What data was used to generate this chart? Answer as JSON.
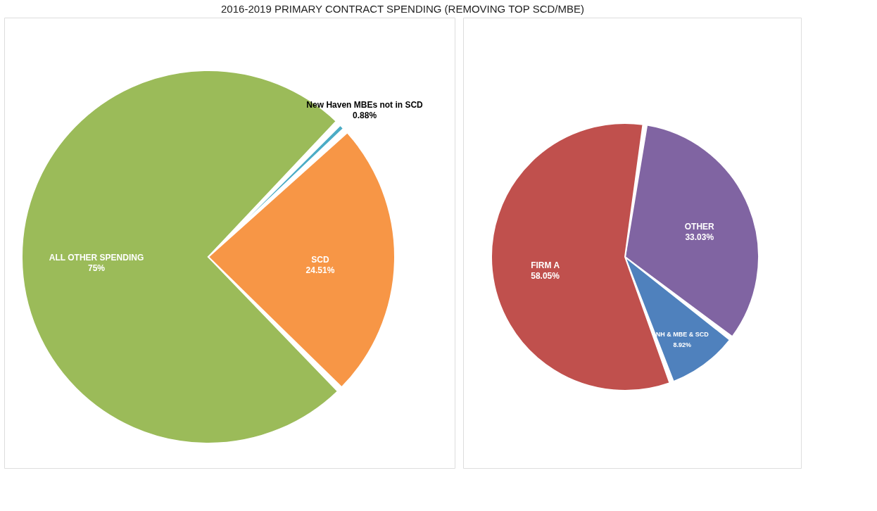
{
  "chart_data": [
    {
      "type": "pie",
      "title": "2016-2019 PRIMARY CONTRACT SPENDING (REMOVING TOP SCD/MBE)",
      "categories": [
        "ALL OTHER SPENDING",
        "New Haven MBEs not in  SCD",
        "SCD"
      ],
      "values": [
        75,
        0.88,
        24.51
      ],
      "colors": [
        "#9bbb59",
        "#4bacc6",
        "#f79646"
      ],
      "value_labels": [
        "75%",
        "0.88%",
        "24.51%"
      ]
    },
    {
      "type": "pie",
      "categories": [
        "OTHER",
        "NH & MBE & SCD",
        "FIRM A"
      ],
      "values": [
        33.03,
        8.92,
        58.05
      ],
      "colors": [
        "#8064a2",
        "#4f81bd",
        "#c0504d"
      ],
      "value_labels": [
        "33.03%",
        "8.92%",
        "58.05%"
      ]
    }
  ]
}
